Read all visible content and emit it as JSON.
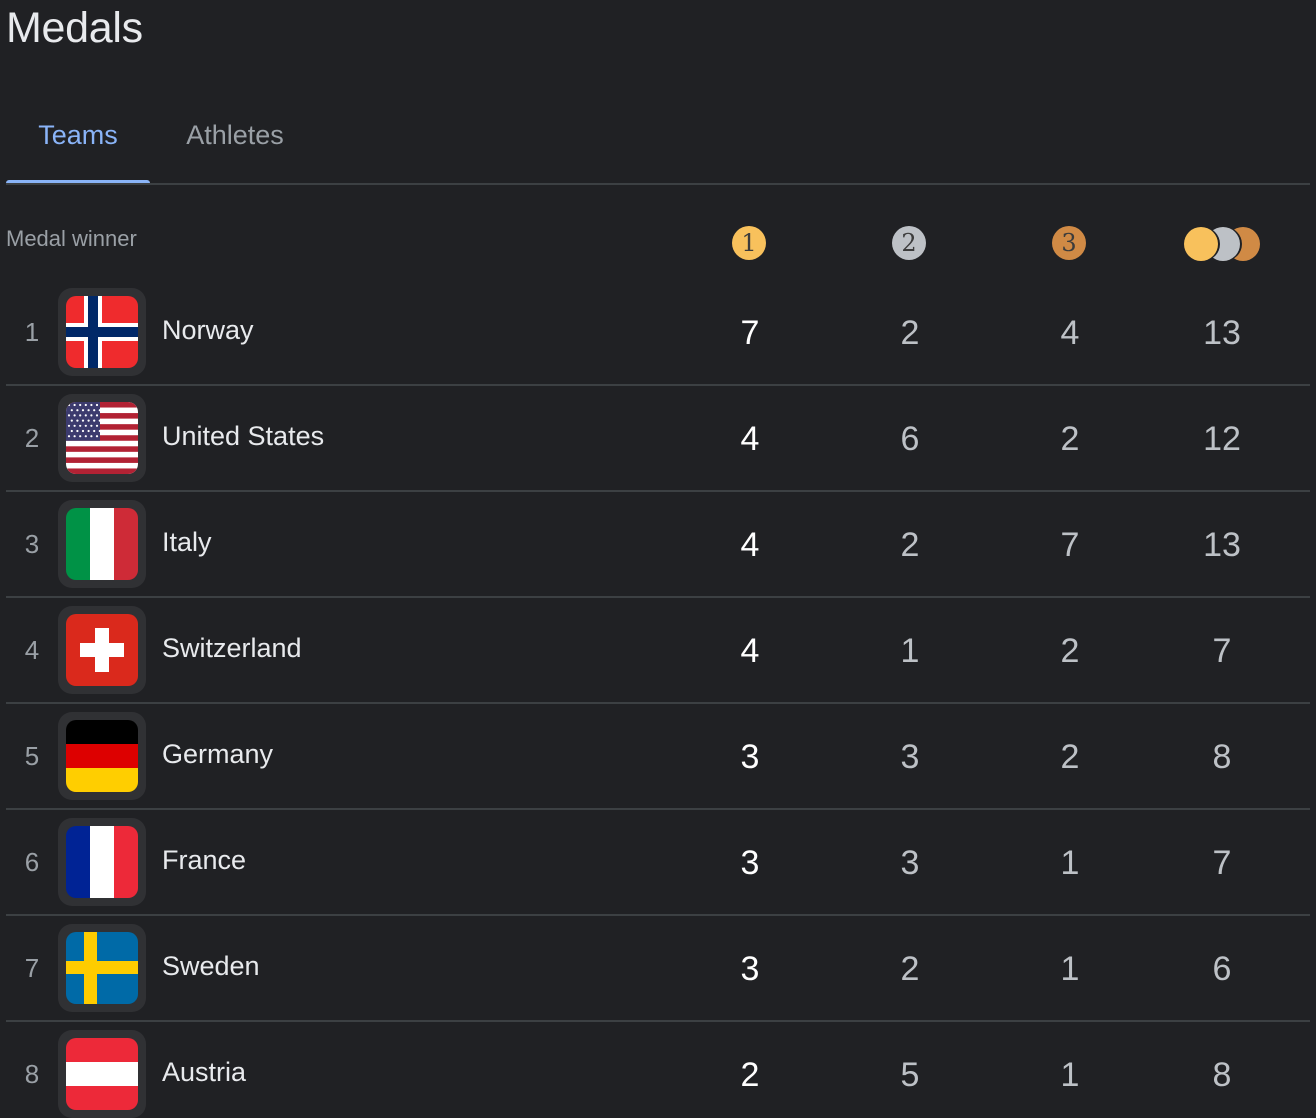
{
  "page": {
    "title": "Medals"
  },
  "tabs": [
    {
      "label": "Teams",
      "selected": true
    },
    {
      "label": "Athletes",
      "selected": false
    }
  ],
  "table": {
    "header_label": "Medal winner",
    "medal_columns": [
      {
        "name": "gold-medal-icon",
        "label": "1",
        "color": "#f8c15c"
      },
      {
        "name": "silver-medal-icon",
        "label": "2",
        "color": "#bdc1c6"
      },
      {
        "name": "bronze-medal-icon",
        "label": "3",
        "color": "#d08a45"
      },
      {
        "name": "total-medals-icon"
      }
    ],
    "rows": [
      {
        "rank": "1",
        "team": "Norway",
        "flag": "norway-flag-icon",
        "gold": "7",
        "silver": "2",
        "bronze": "4",
        "total": "13"
      },
      {
        "rank": "2",
        "team": "United States",
        "flag": "united-states-flag-icon",
        "gold": "4",
        "silver": "6",
        "bronze": "2",
        "total": "12"
      },
      {
        "rank": "3",
        "team": "Italy",
        "flag": "italy-flag-icon",
        "gold": "4",
        "silver": "2",
        "bronze": "7",
        "total": "13"
      },
      {
        "rank": "4",
        "team": "Switzerland",
        "flag": "switzerland-flag-icon",
        "gold": "4",
        "silver": "1",
        "bronze": "2",
        "total": "7"
      },
      {
        "rank": "5",
        "team": "Germany",
        "flag": "germany-flag-icon",
        "gold": "3",
        "silver": "3",
        "bronze": "2",
        "total": "8"
      },
      {
        "rank": "6",
        "team": "France",
        "flag": "france-flag-icon",
        "gold": "3",
        "silver": "3",
        "bronze": "1",
        "total": "7"
      },
      {
        "rank": "7",
        "team": "Sweden",
        "flag": "sweden-flag-icon",
        "gold": "3",
        "silver": "2",
        "bronze": "1",
        "total": "6"
      },
      {
        "rank": "8",
        "team": "Austria",
        "flag": "austria-flag-icon",
        "gold": "2",
        "silver": "5",
        "bronze": "1",
        "total": "8"
      }
    ]
  },
  "colors": {
    "background": "#202124",
    "accent": "#8ab4f8",
    "gold": "#f8c15c",
    "silver": "#bdc1c6",
    "bronze": "#d08a45"
  }
}
